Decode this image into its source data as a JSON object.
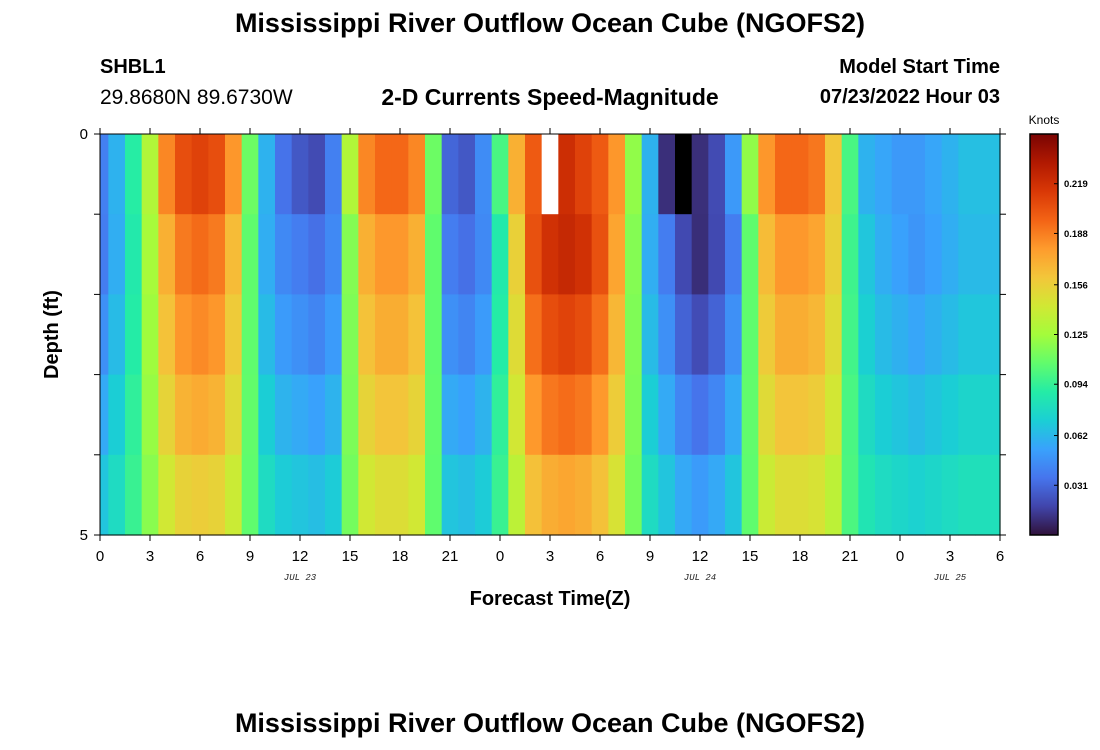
{
  "header": {
    "title": "Mississippi River Outflow Ocean Cube (NGOFS2)",
    "station_id": "SHBL1",
    "coordinates": "29.8680N  89.6730W",
    "subtitle": "2-D Currents Speed-Magnitude",
    "model_start_label": "Model Start Time",
    "model_start_value": "07/23/2022 Hour 03"
  },
  "footer": {
    "repeat_title": "Mississippi River Outflow Ocean Cube (NGOFS2)"
  },
  "colors": {
    "colormap": [
      "#30123b",
      "#4145ab",
      "#4675ed",
      "#39a2fc",
      "#1bcfd4",
      "#24eca6",
      "#61fc6c",
      "#a4fc3b",
      "#d1e834",
      "#f3c63a",
      "#fe9b2d",
      "#f36315",
      "#d93806",
      "#b11901",
      "#7a0403"
    ],
    "missing_light": "#ffffff",
    "missing_dark": "#000000"
  },
  "chart_data": {
    "type": "heatmap",
    "title": "2-D Currents Speed-Magnitude",
    "xlabel": "Forecast Time(Z)",
    "ylabel": "Depth (ft)",
    "x_range_hours": [
      0,
      54
    ],
    "x_tick_hours": [
      0,
      3,
      6,
      9,
      12,
      15,
      18,
      21,
      24,
      27,
      30,
      33,
      36,
      39,
      42,
      45,
      48,
      51,
      54
    ],
    "x_tick_labels": [
      "0",
      "3",
      "6",
      "9",
      "12",
      "15",
      "18",
      "21",
      "0",
      "3",
      "6",
      "9",
      "12",
      "15",
      "18",
      "21",
      "0",
      "3",
      "6"
    ],
    "date_labels": [
      {
        "label": "JUL 23",
        "hour": 12
      },
      {
        "label": "JUL 24",
        "hour": 36
      },
      {
        "label": "JUL 25",
        "hour": 51
      }
    ],
    "y_range": [
      0,
      5
    ],
    "y_tick_labels": [
      {
        "value": 0,
        "label": "0"
      },
      {
        "value": 5,
        "label": "5"
      }
    ],
    "depth_layers": 5,
    "time_step_hours": 1,
    "colorbar": {
      "unit": "Knots",
      "vmin": 0.0,
      "vmax": 0.25,
      "ticks": [
        0.031,
        0.062,
        0.094,
        0.125,
        0.156,
        0.188,
        0.219
      ],
      "tick_labels": [
        "0.031",
        "0.062",
        "0.094",
        "0.125",
        "0.156",
        "0.188",
        "0.219"
      ]
    },
    "time_profile_knots": [
      0.04,
      0.06,
      0.09,
      0.13,
      0.175,
      0.195,
      0.2,
      0.195,
      0.17,
      0.11,
      0.06,
      0.045,
      0.04,
      0.035,
      0.045,
      0.12,
      0.175,
      0.185,
      0.185,
      0.175,
      0.11,
      0.04,
      0.035,
      0.045,
      0.09,
      0.16,
      0.21,
      0.225,
      0.23,
      0.225,
      0.21,
      0.18,
      0.12,
      0.06,
      0.04,
      0.02,
      0.01,
      0.02,
      0.04,
      0.11,
      0.17,
      0.185,
      0.185,
      0.18,
      0.16,
      0.1,
      0.07,
      0.06,
      0.055,
      0.05,
      0.055,
      0.06,
      0.065,
      0.065,
      0.065
    ],
    "surface_profile_knots": [
      0.04,
      0.06,
      0.09,
      0.13,
      0.185,
      0.205,
      0.21,
      0.205,
      0.18,
      0.11,
      0.06,
      0.035,
      0.025,
      0.02,
      0.04,
      0.13,
      0.185,
      0.195,
      0.195,
      0.185,
      0.11,
      0.03,
      0.025,
      0.045,
      0.1,
      0.17,
      0.2,
      null,
      0.22,
      0.21,
      0.2,
      0.18,
      0.12,
      0.06,
      0.01,
      null,
      0.01,
      0.02,
      0.05,
      0.12,
      0.18,
      0.195,
      0.195,
      0.19,
      0.16,
      0.1,
      0.06,
      0.055,
      0.05,
      0.05,
      0.055,
      0.06,
      0.065,
      0.065,
      0.065
    ],
    "surface_missing_style": {
      "27": "light",
      "35": "dark"
    },
    "depth_factors": [
      1.0,
      0.97,
      0.86,
      0.72,
      0.56
    ],
    "depth_offsets": [
      0.0,
      0.0,
      0.012,
      0.028,
      0.045
    ]
  }
}
